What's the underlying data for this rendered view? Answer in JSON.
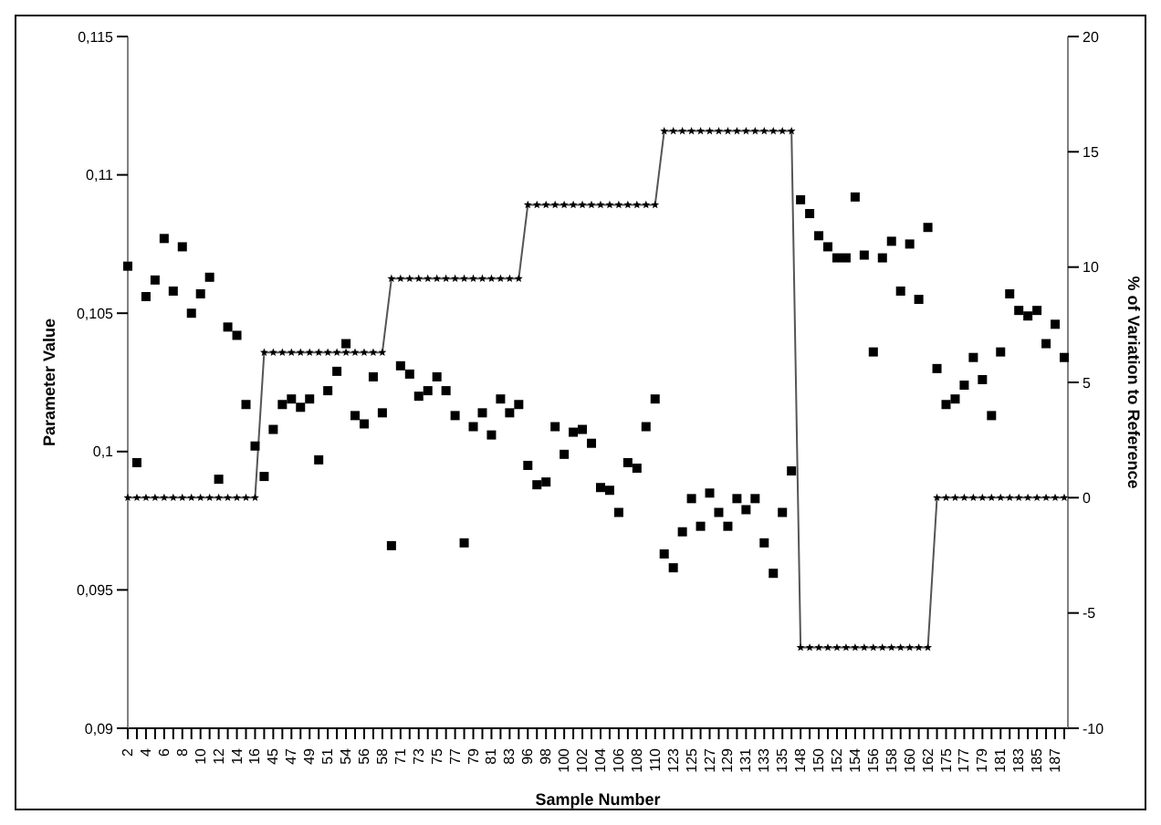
{
  "chart_data": {
    "type": "scatter",
    "xlabel": "Sample Number",
    "ylabel": "Parameter Value",
    "y2label": "% of Variation to Reference",
    "categories": [
      "2",
      null,
      "4",
      null,
      "6",
      null,
      "8",
      null,
      "10",
      null,
      "12",
      null,
      "14",
      null,
      "16",
      null,
      "45",
      null,
      "47",
      null,
      "49",
      null,
      "51",
      null,
      "54",
      null,
      "56",
      null,
      "58",
      null,
      "71",
      null,
      "73",
      null,
      "75",
      null,
      "77",
      null,
      "79",
      null,
      "81",
      null,
      "83",
      null,
      "96",
      null,
      "98",
      null,
      "100",
      null,
      "102",
      null,
      "104",
      null,
      "106",
      null,
      "108",
      null,
      "110",
      null,
      "123",
      null,
      "125",
      null,
      "127",
      null,
      "129",
      null,
      "131",
      null,
      "133",
      null,
      "135",
      null,
      "148",
      null,
      "150",
      null,
      "152",
      null,
      "154",
      null,
      "156",
      null,
      "158",
      null,
      "160",
      null,
      "162",
      null,
      "175",
      null,
      "177",
      null,
      "179",
      null,
      "181",
      null,
      "183",
      null,
      "185",
      null,
      "187",
      null
    ],
    "series": [
      {
        "color": "#000000",
        "marker": "square",
        "values": [
          0.1067,
          0.0996,
          0.1056,
          0.1062,
          0.1077,
          0.1058,
          0.1074,
          0.105,
          0.1057,
          0.1063,
          0.099,
          0.1045,
          0.1042,
          0.1017,
          0.1002,
          0.0991,
          0.1008,
          0.1017,
          0.1019,
          0.1016,
          0.1019,
          0.0997,
          0.1022,
          0.1029,
          0.1039,
          0.1013,
          0.101,
          0.1027,
          0.1014,
          0.0966,
          0.1031,
          0.1028,
          0.102,
          0.1022,
          0.1027,
          0.1022,
          0.1013,
          0.0967,
          0.1009,
          0.1014,
          0.1006,
          0.1019,
          0.1014,
          0.1017,
          0.0995,
          0.0988,
          0.0989,
          0.1009,
          0.0999,
          0.1007,
          0.1008,
          0.1003,
          0.0987,
          0.0986,
          0.0978,
          0.0996,
          0.0994,
          0.1009,
          0.1019,
          0.0963,
          0.0958,
          0.0971,
          0.0983,
          0.0973,
          0.0985,
          0.0978,
          0.0973,
          0.0983,
          0.0979,
          0.0983,
          0.0967,
          0.0956,
          0.0978,
          0.0993,
          0.1091,
          0.1086,
          0.1078,
          0.1074,
          0.107,
          0.107,
          0.1092,
          0.1071,
          0.1036,
          0.107,
          0.1076,
          0.1058,
          0.1075,
          0.1055,
          0.1081,
          0.103,
          0.1017,
          0.1019,
          0.1024,
          0.1034,
          0.1026,
          0.1013,
          0.1036,
          0.1057,
          0.1051,
          0.1049,
          0.1051,
          0.1039,
          0.1046,
          0.1034
        ]
      },
      {
        "type": "line",
        "axis": "y2",
        "color": "#555555",
        "marker": "star",
        "line_style": "solid",
        "values": [
          0,
          0,
          0,
          0,
          0,
          0,
          0,
          0,
          0,
          0,
          0,
          0,
          0,
          0,
          0,
          6.3,
          6.3,
          6.3,
          6.3,
          6.3,
          6.3,
          6.3,
          6.3,
          6.3,
          6.3,
          6.3,
          6.3,
          6.3,
          6.3,
          9.5,
          9.5,
          9.5,
          9.5,
          9.5,
          9.5,
          9.5,
          9.5,
          9.5,
          9.5,
          9.5,
          9.5,
          9.5,
          9.5,
          9.5,
          12.7,
          12.7,
          12.7,
          12.7,
          12.7,
          12.7,
          12.7,
          12.7,
          12.7,
          12.7,
          12.7,
          12.7,
          12.7,
          12.7,
          12.7,
          15.9,
          15.9,
          15.9,
          15.9,
          15.9,
          15.9,
          15.9,
          15.9,
          15.9,
          15.9,
          15.9,
          15.9,
          15.9,
          15.9,
          15.9,
          -6.5,
          -6.5,
          -6.5,
          -6.5,
          -6.5,
          -6.5,
          -6.5,
          -6.5,
          -6.5,
          -6.5,
          -6.5,
          -6.5,
          -6.5,
          -6.5,
          -6.5,
          0,
          0,
          0,
          0,
          0,
          0,
          0,
          0,
          0,
          0,
          0,
          0,
          0,
          0,
          0
        ]
      }
    ],
    "ylim": [
      0.09,
      0.115
    ],
    "yticks": [
      {
        "value": 0.09,
        "label": "0,09"
      },
      {
        "value": 0.095,
        "label": "0,095"
      },
      {
        "value": 0.1,
        "label": "0,1"
      },
      {
        "value": 0.105,
        "label": "0,105"
      },
      {
        "value": 0.11,
        "label": "0,11"
      },
      {
        "value": 0.115,
        "label": "0,115"
      }
    ],
    "y2lim": [
      -10,
      20
    ],
    "y2ticks": [
      -10,
      -5,
      0,
      5,
      10,
      15,
      20
    ]
  }
}
